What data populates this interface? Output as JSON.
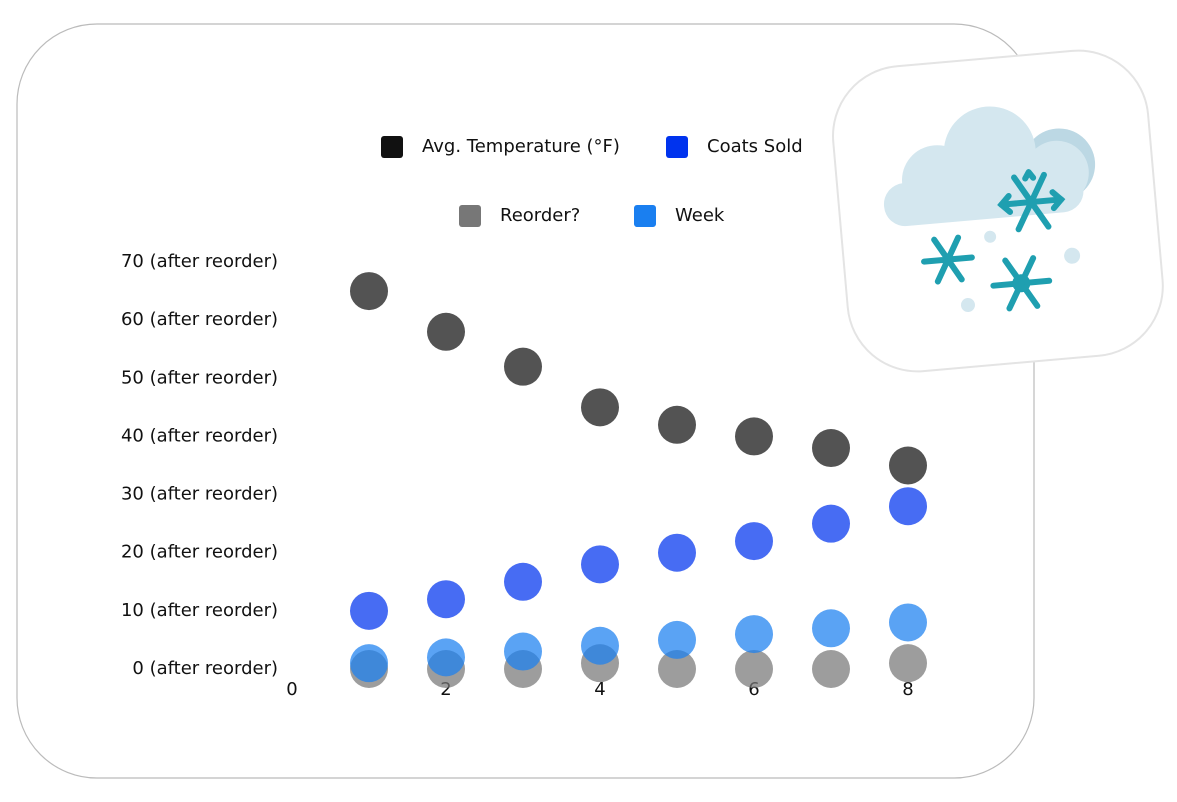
{
  "chart_data": {
    "type": "scatter",
    "x": [
      1,
      2,
      3,
      4,
      5,
      6,
      7,
      8
    ],
    "series": [
      {
        "name": "Avg. Temperature (°F)",
        "color": "#111111",
        "values": [
          65,
          58,
          52,
          45,
          42,
          40,
          38,
          35
        ]
      },
      {
        "name": "Coats Sold",
        "color": "#0033ee",
        "values": [
          10,
          12,
          15,
          18,
          20,
          22,
          25,
          28
        ]
      },
      {
        "name": "Reorder?",
        "color": "#777777",
        "values": [
          0,
          0,
          0,
          1,
          0,
          0,
          0,
          1
        ]
      },
      {
        "name": "Week",
        "color": "#1a7ff0",
        "values": [
          1,
          2,
          3,
          4,
          5,
          6,
          7,
          8
        ]
      }
    ],
    "xlim": [
      0,
      8
    ],
    "xticks": [
      0,
      2,
      4,
      6,
      8
    ],
    "ylim": [
      0,
      70
    ],
    "yticks": [
      {
        "value": 0,
        "label": "0 (after reorder)"
      },
      {
        "value": 10,
        "label": "10 (after reorder)"
      },
      {
        "value": 20,
        "label": "20 (after reorder)"
      },
      {
        "value": 30,
        "label": "30 (after reorder)"
      },
      {
        "value": 40,
        "label": "40 (after reorder)"
      },
      {
        "value": 50,
        "label": "50 (after reorder)"
      },
      {
        "value": 60,
        "label": "60 (after reorder)"
      },
      {
        "value": 70,
        "label": "70 (after reorder)"
      }
    ],
    "grid": false
  }
}
